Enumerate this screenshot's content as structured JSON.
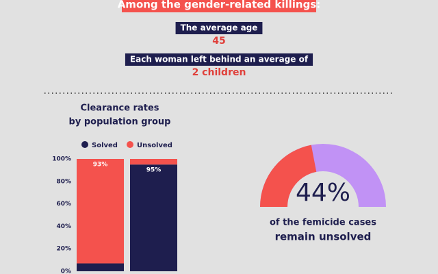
{
  "header": {
    "banner": "Among the gender-related killings:",
    "facts": [
      {
        "label": "The average age",
        "value": 45
      },
      {
        "label": "Each woman left behind an average of",
        "value": "2 children"
      }
    ]
  },
  "chart_data": [
    {
      "type": "bar",
      "stacked": true,
      "title": [
        "Clearance rates",
        "by population group"
      ],
      "categories": [
        null,
        null
      ],
      "series": [
        {
          "name": "Solved",
          "color": "#1e1e4e",
          "values": [
            7,
            95
          ],
          "value_labels": [
            null,
            "95%"
          ]
        },
        {
          "name": "Unsolved",
          "color": "#f4524d",
          "values": [
            93,
            5
          ],
          "value_labels": [
            "93%",
            null
          ]
        }
      ],
      "ylim": [
        0,
        100
      ],
      "yticks": [
        {
          "value": 0,
          "label": "0%"
        },
        {
          "value": 20,
          "label": "20%"
        },
        {
          "value": 40,
          "label": "40%"
        },
        {
          "value": 60,
          "label": "60%"
        },
        {
          "value": 80,
          "label": "80%"
        },
        {
          "value": 100,
          "label": "100%"
        }
      ],
      "legend": "top"
    },
    {
      "type": "gauge",
      "values": [
        44
      ],
      "value_labels": [
        "44%"
      ],
      "ylim": [
        0,
        100
      ],
      "color": "#f4524d",
      "track_color": "#c192f5",
      "caption": [
        "of the femicide cases",
        "remain unsolved"
      ]
    }
  ]
}
